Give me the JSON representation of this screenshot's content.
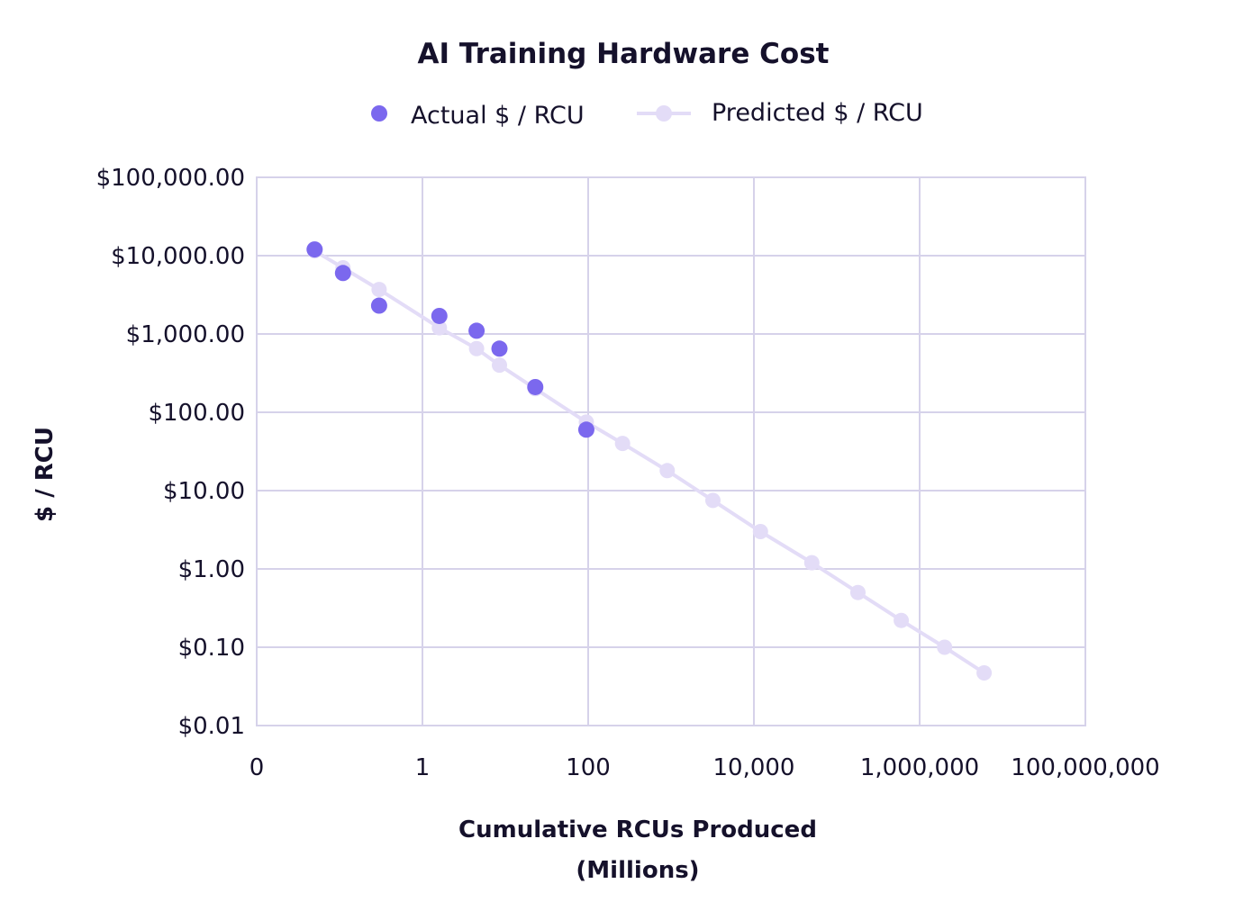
{
  "chart_data": {
    "type": "scatter",
    "title": "AI Training Hardware Cost",
    "xlabel_line1": "Cumulative RCUs Produced",
    "xlabel_line2": "(Millions)",
    "ylabel": "$ / RCU",
    "x_scale": "log",
    "y_scale": "log",
    "xlim": [
      0.01,
      100000000
    ],
    "ylim": [
      0.01,
      100000
    ],
    "grid": true,
    "legend_position": "top",
    "x_ticks": [
      {
        "value": 0.01,
        "label": "0"
      },
      {
        "value": 1,
        "label": "1"
      },
      {
        "value": 100,
        "label": "100"
      },
      {
        "value": 10000,
        "label": "10,000"
      },
      {
        "value": 1000000,
        "label": "1,000,000"
      },
      {
        "value": 100000000,
        "label": "100,000,000"
      }
    ],
    "y_ticks": [
      {
        "value": 100000,
        "label": "$100,000.00"
      },
      {
        "value": 10000,
        "label": "$10,000.00"
      },
      {
        "value": 1000,
        "label": "$1,000.00"
      },
      {
        "value": 100,
        "label": "$100.00"
      },
      {
        "value": 10,
        "label": "$10.00"
      },
      {
        "value": 1,
        "label": "$1.00"
      },
      {
        "value": 0.1,
        "label": "$0.10"
      },
      {
        "value": 0.01,
        "label": "$0.01"
      }
    ],
    "series": [
      {
        "name": "Actual $ / RCU",
        "color": "#7b68ee",
        "style": "markers",
        "points": [
          {
            "x": 0.05,
            "y": 12000
          },
          {
            "x": 0.11,
            "y": 6000
          },
          {
            "x": 0.3,
            "y": 2300
          },
          {
            "x": 1.6,
            "y": 1700
          },
          {
            "x": 4.5,
            "y": 1100
          },
          {
            "x": 8.5,
            "y": 650
          },
          {
            "x": 23,
            "y": 210
          },
          {
            "x": 95,
            "y": 60
          }
        ]
      },
      {
        "name": "Predicted $ / RCU",
        "color": "#e3dcf7",
        "style": "line-markers",
        "points": [
          {
            "x": 0.05,
            "y": 11500
          },
          {
            "x": 0.11,
            "y": 7000
          },
          {
            "x": 0.3,
            "y": 3700
          },
          {
            "x": 1.6,
            "y": 1200
          },
          {
            "x": 4.5,
            "y": 650
          },
          {
            "x": 8.5,
            "y": 400
          },
          {
            "x": 23,
            "y": 200
          },
          {
            "x": 95,
            "y": 75
          },
          {
            "x": 260,
            "y": 40
          },
          {
            "x": 900,
            "y": 18
          },
          {
            "x": 3200,
            "y": 7.5
          },
          {
            "x": 12000,
            "y": 3
          },
          {
            "x": 50000,
            "y": 1.2
          },
          {
            "x": 180000,
            "y": 0.5
          },
          {
            "x": 600000,
            "y": 0.22
          },
          {
            "x": 2000000,
            "y": 0.1
          },
          {
            "x": 6000000,
            "y": 0.047
          }
        ]
      }
    ]
  }
}
